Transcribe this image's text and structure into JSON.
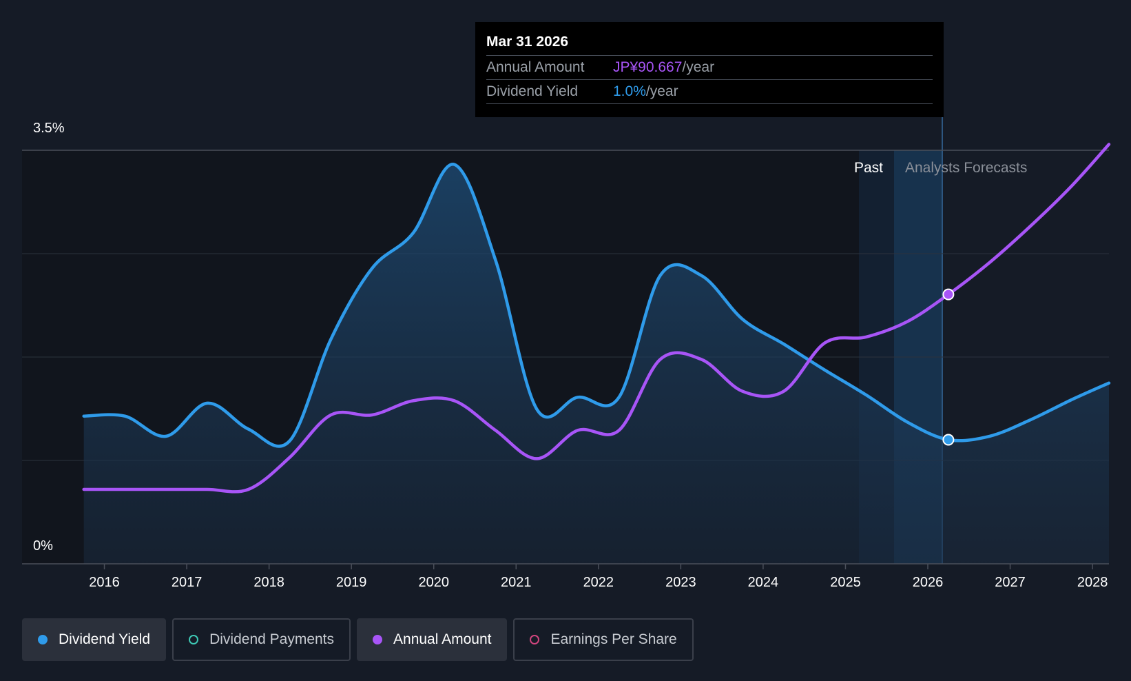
{
  "tooltip": {
    "date": "Mar 31 2026",
    "rows": [
      {
        "label": "Annual Amount",
        "value": "JP¥90.667",
        "unit": "/year"
      },
      {
        "label": "Dividend Yield",
        "value": "1.0%",
        "unit": "/year"
      }
    ]
  },
  "regions": {
    "past": "Past",
    "forecast": "Analysts Forecasts"
  },
  "legend": [
    {
      "label": "Dividend Yield",
      "color": "#2f9bea",
      "active": true,
      "filled": true
    },
    {
      "label": "Dividend Payments",
      "color": "#3ec9b5",
      "active": false,
      "filled": false
    },
    {
      "label": "Annual Amount",
      "color": "#a855f7",
      "active": true,
      "filled": true
    },
    {
      "label": "Earnings Per Share",
      "color": "#d0457e",
      "active": false,
      "filled": false
    }
  ],
  "chart_data": {
    "type": "line",
    "x_ticks": [
      "2016",
      "2017",
      "2018",
      "2019",
      "2020",
      "2021",
      "2022",
      "2023",
      "2024",
      "2025",
      "2026",
      "2027",
      "2028"
    ],
    "x_range": [
      2015.0,
      2028.2
    ],
    "y_tick_labels": [
      "0%",
      "3.5%"
    ],
    "ylim": [
      0,
      3.5
    ],
    "grid": true,
    "past_forecast_boundary": 2026.25,
    "highlight_x": 2026.25,
    "series": [
      {
        "name": "Dividend Yield",
        "color": "#2f9bea",
        "unit": "%",
        "area": true,
        "points": [
          [
            2015.75,
            1.25
          ],
          [
            2016.25,
            1.25
          ],
          [
            2016.75,
            1.08
          ],
          [
            2017.25,
            1.36
          ],
          [
            2017.75,
            1.14
          ],
          [
            2018.25,
            1.04
          ],
          [
            2018.75,
            1.9
          ],
          [
            2019.25,
            2.5
          ],
          [
            2019.75,
            2.8
          ],
          [
            2020.25,
            3.38
          ],
          [
            2020.75,
            2.57
          ],
          [
            2021.25,
            1.31
          ],
          [
            2021.75,
            1.41
          ],
          [
            2022.25,
            1.41
          ],
          [
            2022.75,
            2.44
          ],
          [
            2023.25,
            2.44
          ],
          [
            2023.75,
            2.07
          ],
          [
            2024.25,
            1.86
          ],
          [
            2024.75,
            1.64
          ],
          [
            2025.25,
            1.43
          ],
          [
            2025.75,
            1.2
          ],
          [
            2026.25,
            1.05
          ],
          [
            2026.75,
            1.08
          ],
          [
            2027.25,
            1.22
          ],
          [
            2027.75,
            1.39
          ],
          [
            2028.2,
            1.53
          ]
        ]
      },
      {
        "name": "Annual Amount",
        "color": "#a855f7",
        "unit": "JP¥",
        "points": [
          [
            2015.75,
            0.63
          ],
          [
            2016.25,
            0.63
          ],
          [
            2016.75,
            0.63
          ],
          [
            2017.25,
            0.63
          ],
          [
            2017.75,
            0.63
          ],
          [
            2018.25,
            0.9
          ],
          [
            2018.75,
            1.26
          ],
          [
            2019.25,
            1.26
          ],
          [
            2019.75,
            1.38
          ],
          [
            2020.25,
            1.38
          ],
          [
            2020.75,
            1.13
          ],
          [
            2021.25,
            0.89
          ],
          [
            2021.75,
            1.13
          ],
          [
            2022.25,
            1.13
          ],
          [
            2022.75,
            1.73
          ],
          [
            2023.25,
            1.73
          ],
          [
            2023.75,
            1.46
          ],
          [
            2024.25,
            1.46
          ],
          [
            2024.75,
            1.87
          ],
          [
            2025.25,
            1.92
          ],
          [
            2025.75,
            2.05
          ],
          [
            2026.25,
            2.28
          ],
          [
            2026.75,
            2.55
          ],
          [
            2027.25,
            2.86
          ],
          [
            2027.75,
            3.2
          ],
          [
            2028.2,
            3.55
          ]
        ]
      }
    ]
  }
}
